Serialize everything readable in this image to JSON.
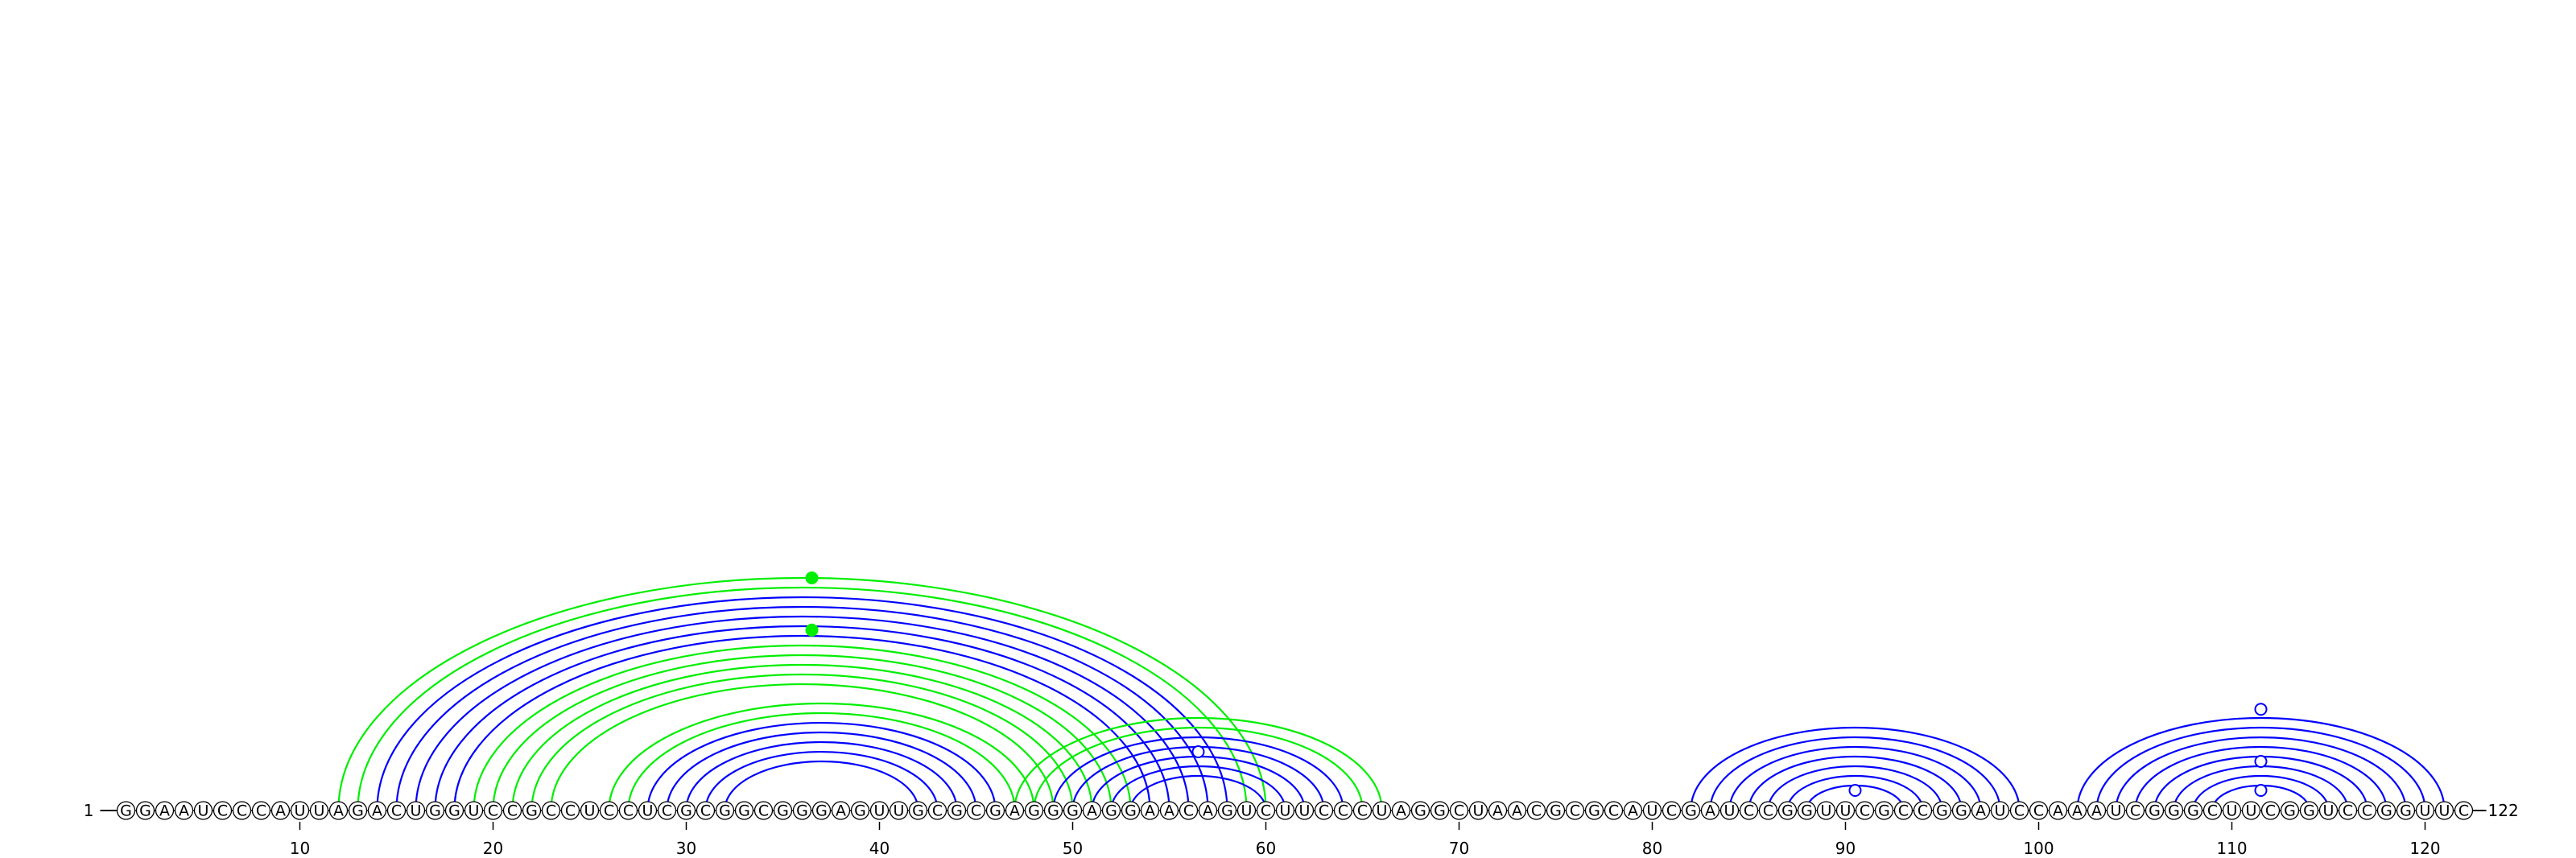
{
  "sequence": "GGAAUCCCAUUAGACUGGUCCGCCUCCUCGCGGCGGGAGUUGCGCGAGGGAGGAACAGUCUUCCCUAGGCUAACGCGCAUCGAUCCGGUUCGCCGGAUCCAAAUCGGGCUUCGGUCCGGUUC",
  "start_label": "1",
  "end_label": "122",
  "ticks": [
    10,
    20,
    30,
    40,
    50,
    60,
    70,
    80,
    90,
    100,
    110,
    120
  ],
  "colors": {
    "primary_arc": "#0000ff",
    "alternative_arc": "#00ee00",
    "nucleotide_fill": "#ffffff",
    "nucleotide_stroke": "#000000"
  },
  "arcs": [
    {
      "i": 12,
      "j": 60,
      "color": "alternative"
    },
    {
      "i": 13,
      "j": 59,
      "color": "alternative"
    },
    {
      "i": 14,
      "j": 58,
      "color": "primary"
    },
    {
      "i": 15,
      "j": 57,
      "color": "primary"
    },
    {
      "i": 16,
      "j": 56,
      "color": "primary"
    },
    {
      "i": 17,
      "j": 55,
      "color": "primary"
    },
    {
      "i": 18,
      "j": 54,
      "color": "primary"
    },
    {
      "i": 19,
      "j": 53,
      "color": "alternative"
    },
    {
      "i": 20,
      "j": 52,
      "color": "alternative"
    },
    {
      "i": 21,
      "j": 51,
      "color": "alternative"
    },
    {
      "i": 22,
      "j": 50,
      "color": "alternative"
    },
    {
      "i": 23,
      "j": 49,
      "color": "alternative"
    },
    {
      "i": 26,
      "j": 48,
      "color": "alternative"
    },
    {
      "i": 27,
      "j": 47,
      "color": "alternative"
    },
    {
      "i": 28,
      "j": 46,
      "color": "primary"
    },
    {
      "i": 29,
      "j": 45,
      "color": "primary"
    },
    {
      "i": 30,
      "j": 44,
      "color": "primary"
    },
    {
      "i": 31,
      "j": 43,
      "color": "primary"
    },
    {
      "i": 32,
      "j": 42,
      "color": "primary"
    },
    {
      "i": 47,
      "j": 66,
      "color": "alternative"
    },
    {
      "i": 48,
      "j": 65,
      "color": "alternative"
    },
    {
      "i": 49,
      "j": 64,
      "color": "primary"
    },
    {
      "i": 50,
      "j": 63,
      "color": "primary"
    },
    {
      "i": 51,
      "j": 62,
      "color": "primary"
    },
    {
      "i": 52,
      "j": 61,
      "color": "primary"
    },
    {
      "i": 53,
      "j": 60,
      "color": "primary"
    },
    {
      "i": 82,
      "j": 99,
      "color": "primary"
    },
    {
      "i": 83,
      "j": 98,
      "color": "primary"
    },
    {
      "i": 84,
      "j": 97,
      "color": "primary"
    },
    {
      "i": 85,
      "j": 96,
      "color": "primary"
    },
    {
      "i": 86,
      "j": 95,
      "color": "primary"
    },
    {
      "i": 87,
      "j": 94,
      "color": "primary"
    },
    {
      "i": 88,
      "j": 93,
      "color": "primary"
    },
    {
      "i": 102,
      "j": 121,
      "color": "primary"
    },
    {
      "i": 103,
      "j": 120,
      "color": "primary"
    },
    {
      "i": 104,
      "j": 119,
      "color": "primary"
    },
    {
      "i": 105,
      "j": 118,
      "color": "primary"
    },
    {
      "i": 106,
      "j": 117,
      "color": "primary"
    },
    {
      "i": 107,
      "j": 116,
      "color": "primary"
    },
    {
      "i": 108,
      "j": 115,
      "color": "primary"
    },
    {
      "i": 109,
      "j": 114,
      "color": "primary"
    }
  ],
  "markers": [
    {
      "pos": 36.5,
      "level": 12.0,
      "style": "filled"
    },
    {
      "pos": 36.5,
      "level": 9.3,
      "style": "filled"
    },
    {
      "pos": 56.5,
      "level": 3.0,
      "style": "open"
    },
    {
      "pos": 90.5,
      "level": 1.0,
      "style": "open"
    },
    {
      "pos": 111.5,
      "level": 5.2,
      "style": "open"
    },
    {
      "pos": 111.5,
      "level": 2.5,
      "style": "open"
    },
    {
      "pos": 111.5,
      "level": 1.0,
      "style": "open"
    }
  ]
}
